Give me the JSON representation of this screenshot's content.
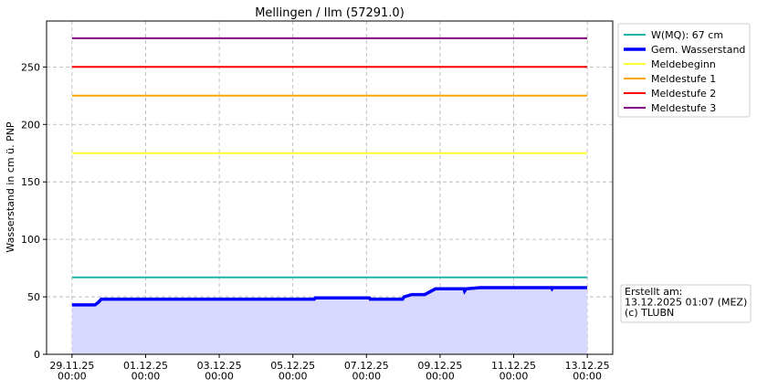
{
  "chart_data": {
    "type": "line",
    "title": "Mellingen / Ilm (57291.0)",
    "y_label": "Wasserstand in cm ü. PNP",
    "annotation": "Erstellt am:\n13.12.2025 01:07 (MEZ)\n(c) TLUBN",
    "grid": true,
    "legend": "outside upper right",
    "xlim": [
      "2025-11-28T07:25",
      "2025-12-13T16:35"
    ],
    "xticks": [
      {
        "value": "2025-11-29T00:00",
        "label": "29.11.25\n00:00"
      },
      {
        "value": "2025-12-01T00:00",
        "label": "01.12.25\n00:00"
      },
      {
        "value": "2025-12-03T00:00",
        "label": "03.12.25\n00:00"
      },
      {
        "value": "2025-12-05T00:00",
        "label": "05.12.25\n00:00"
      },
      {
        "value": "2025-12-07T00:00",
        "label": "07.12.25\n00:00"
      },
      {
        "value": "2025-12-09T00:00",
        "label": "09.12.25\n00:00"
      },
      {
        "value": "2025-12-11T00:00",
        "label": "11.12.25\n00:00"
      },
      {
        "value": "2025-12-13T00:00",
        "label": "13.12.25\n00:00"
      }
    ],
    "ylim": [
      0,
      290
    ],
    "yticks": [
      0,
      50,
      100,
      150,
      200,
      250
    ],
    "series": [
      {
        "name": "W(MQ): 67 cm",
        "color": "#20b2aa",
        "width": 2,
        "x": [
          "2025-11-29T00:00",
          "2025-12-13T00:00"
        ],
        "values": [
          67,
          67
        ]
      },
      {
        "name": "Gem. Wasserstand",
        "color": "#0000ff",
        "width": 3.5,
        "fill_color": "#d8d8ff",
        "x": [
          "2025-11-29T00:00",
          "2025-11-29T15:00",
          "2025-11-29T17:00",
          "2025-11-29T19:00",
          "2025-12-05T14:00",
          "2025-12-05T14:30",
          "2025-12-07T02:00",
          "2025-12-07T02:30",
          "2025-12-07T23:30",
          "2025-12-08T00:30",
          "2025-12-08T05:30",
          "2025-12-08T14:00",
          "2025-12-08T21:00",
          "2025-12-09T15:30",
          "2025-12-09T16:00",
          "2025-12-09T17:00",
          "2025-12-10T02:00",
          "2025-12-12T00:30",
          "2025-12-12T01:00",
          "2025-12-12T01:30",
          "2025-12-13T00:00"
        ],
        "values": [
          43,
          43,
          45,
          48,
          48,
          49,
          49,
          48,
          48,
          50,
          52,
          52,
          57,
          57,
          55,
          57,
          58,
          58,
          57,
          58,
          58
        ]
      },
      {
        "name": "Meldebeginn",
        "color": "#ffff33",
        "width": 2,
        "x": [
          "2025-11-29T00:00",
          "2025-12-13T00:00"
        ],
        "values": [
          175,
          175
        ]
      },
      {
        "name": "Meldestufe 1",
        "color": "#ffa500",
        "width": 2,
        "x": [
          "2025-11-29T00:00",
          "2025-12-13T00:00"
        ],
        "values": [
          225,
          225
        ]
      },
      {
        "name": "Meldestufe 2",
        "color": "#ff0000",
        "width": 2,
        "x": [
          "2025-11-29T00:00",
          "2025-12-13T00:00"
        ],
        "values": [
          250,
          250
        ]
      },
      {
        "name": "Meldestufe 3",
        "color": "#800080",
        "width": 2,
        "x": [
          "2025-11-29T00:00",
          "2025-12-13T00:00"
        ],
        "values": [
          275,
          275
        ]
      }
    ]
  }
}
